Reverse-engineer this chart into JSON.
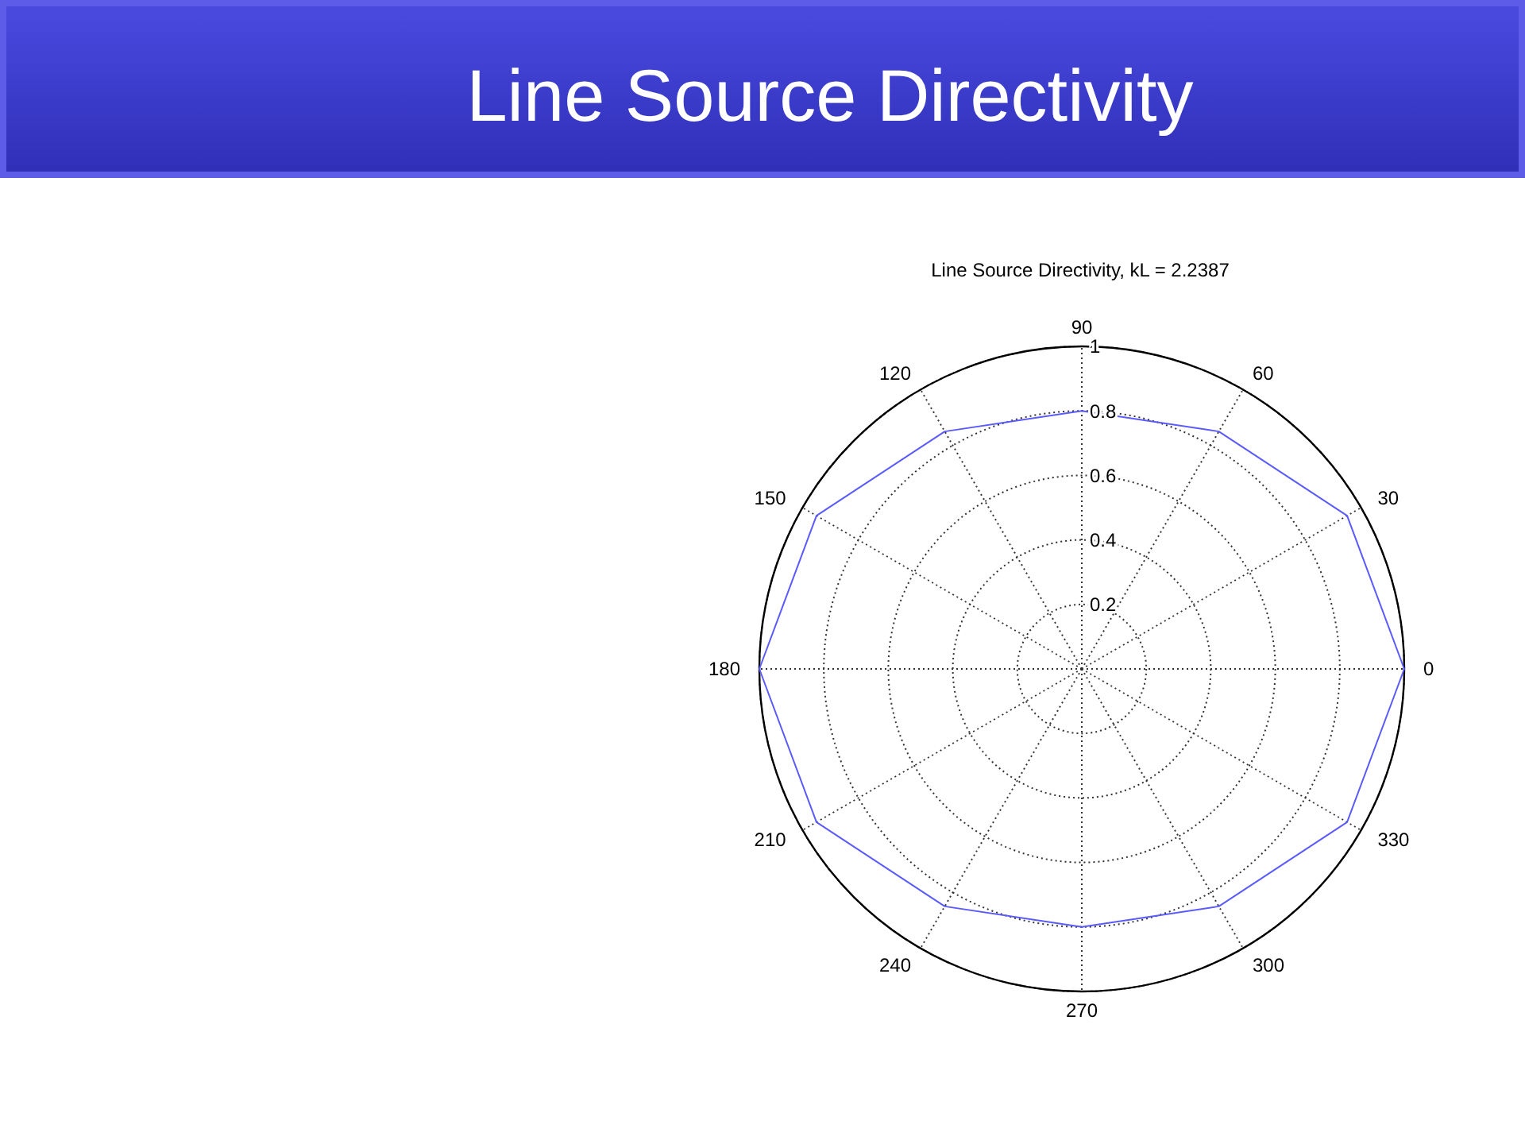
{
  "chart_data": {
    "type": "radar",
    "title": "Line Source Directivity",
    "subtitle": "Line Source Directivity, kL = 2.2387",
    "categories": [
      "90",
      "60",
      "30",
      "0",
      "330",
      "300",
      "270",
      "240",
      "210",
      "180",
      "150",
      "120"
    ],
    "series": [
      {
        "color": "#5a5aff",
        "values": [
          0.8,
          0.85,
          0.95,
          1,
          0.95,
          0.85,
          0.8,
          0.85,
          0.95,
          1,
          0.95,
          0.85
        ]
      }
    ],
    "ylim": [
      0,
      1
    ],
    "yticks": [
      0.2,
      0.4,
      0.6,
      0.8,
      1
    ],
    "grid": true,
    "marker": "none",
    "line_style": "solid"
  }
}
